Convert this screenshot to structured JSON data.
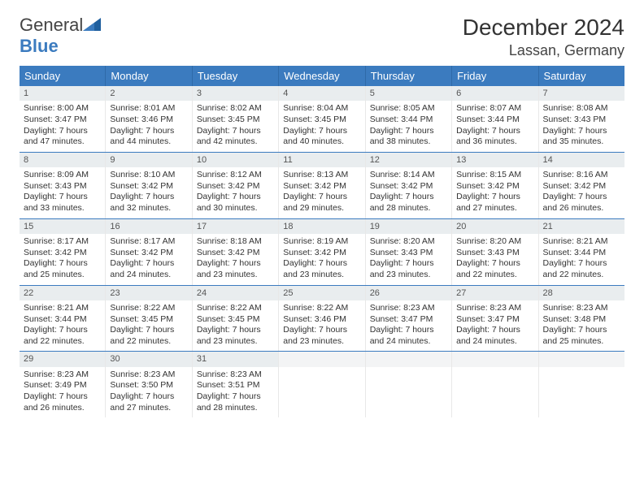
{
  "logo": {
    "word1": "General",
    "word2": "Blue"
  },
  "title": "December 2024",
  "location": "Lassan, Germany",
  "header_color": "#3b7bbf",
  "day_names": [
    "Sunday",
    "Monday",
    "Tuesday",
    "Wednesday",
    "Thursday",
    "Friday",
    "Saturday"
  ],
  "weeks": [
    [
      {
        "num": "1",
        "sunrise": "Sunrise: 8:00 AM",
        "sunset": "Sunset: 3:47 PM",
        "day1": "Daylight: 7 hours",
        "day2": "and 47 minutes."
      },
      {
        "num": "2",
        "sunrise": "Sunrise: 8:01 AM",
        "sunset": "Sunset: 3:46 PM",
        "day1": "Daylight: 7 hours",
        "day2": "and 44 minutes."
      },
      {
        "num": "3",
        "sunrise": "Sunrise: 8:02 AM",
        "sunset": "Sunset: 3:45 PM",
        "day1": "Daylight: 7 hours",
        "day2": "and 42 minutes."
      },
      {
        "num": "4",
        "sunrise": "Sunrise: 8:04 AM",
        "sunset": "Sunset: 3:45 PM",
        "day1": "Daylight: 7 hours",
        "day2": "and 40 minutes."
      },
      {
        "num": "5",
        "sunrise": "Sunrise: 8:05 AM",
        "sunset": "Sunset: 3:44 PM",
        "day1": "Daylight: 7 hours",
        "day2": "and 38 minutes."
      },
      {
        "num": "6",
        "sunrise": "Sunrise: 8:07 AM",
        "sunset": "Sunset: 3:44 PM",
        "day1": "Daylight: 7 hours",
        "day2": "and 36 minutes."
      },
      {
        "num": "7",
        "sunrise": "Sunrise: 8:08 AM",
        "sunset": "Sunset: 3:43 PM",
        "day1": "Daylight: 7 hours",
        "day2": "and 35 minutes."
      }
    ],
    [
      {
        "num": "8",
        "sunrise": "Sunrise: 8:09 AM",
        "sunset": "Sunset: 3:43 PM",
        "day1": "Daylight: 7 hours",
        "day2": "and 33 minutes."
      },
      {
        "num": "9",
        "sunrise": "Sunrise: 8:10 AM",
        "sunset": "Sunset: 3:42 PM",
        "day1": "Daylight: 7 hours",
        "day2": "and 32 minutes."
      },
      {
        "num": "10",
        "sunrise": "Sunrise: 8:12 AM",
        "sunset": "Sunset: 3:42 PM",
        "day1": "Daylight: 7 hours",
        "day2": "and 30 minutes."
      },
      {
        "num": "11",
        "sunrise": "Sunrise: 8:13 AM",
        "sunset": "Sunset: 3:42 PM",
        "day1": "Daylight: 7 hours",
        "day2": "and 29 minutes."
      },
      {
        "num": "12",
        "sunrise": "Sunrise: 8:14 AM",
        "sunset": "Sunset: 3:42 PM",
        "day1": "Daylight: 7 hours",
        "day2": "and 28 minutes."
      },
      {
        "num": "13",
        "sunrise": "Sunrise: 8:15 AM",
        "sunset": "Sunset: 3:42 PM",
        "day1": "Daylight: 7 hours",
        "day2": "and 27 minutes."
      },
      {
        "num": "14",
        "sunrise": "Sunrise: 8:16 AM",
        "sunset": "Sunset: 3:42 PM",
        "day1": "Daylight: 7 hours",
        "day2": "and 26 minutes."
      }
    ],
    [
      {
        "num": "15",
        "sunrise": "Sunrise: 8:17 AM",
        "sunset": "Sunset: 3:42 PM",
        "day1": "Daylight: 7 hours",
        "day2": "and 25 minutes."
      },
      {
        "num": "16",
        "sunrise": "Sunrise: 8:17 AM",
        "sunset": "Sunset: 3:42 PM",
        "day1": "Daylight: 7 hours",
        "day2": "and 24 minutes."
      },
      {
        "num": "17",
        "sunrise": "Sunrise: 8:18 AM",
        "sunset": "Sunset: 3:42 PM",
        "day1": "Daylight: 7 hours",
        "day2": "and 23 minutes."
      },
      {
        "num": "18",
        "sunrise": "Sunrise: 8:19 AM",
        "sunset": "Sunset: 3:42 PM",
        "day1": "Daylight: 7 hours",
        "day2": "and 23 minutes."
      },
      {
        "num": "19",
        "sunrise": "Sunrise: 8:20 AM",
        "sunset": "Sunset: 3:43 PM",
        "day1": "Daylight: 7 hours",
        "day2": "and 23 minutes."
      },
      {
        "num": "20",
        "sunrise": "Sunrise: 8:20 AM",
        "sunset": "Sunset: 3:43 PM",
        "day1": "Daylight: 7 hours",
        "day2": "and 22 minutes."
      },
      {
        "num": "21",
        "sunrise": "Sunrise: 8:21 AM",
        "sunset": "Sunset: 3:44 PM",
        "day1": "Daylight: 7 hours",
        "day2": "and 22 minutes."
      }
    ],
    [
      {
        "num": "22",
        "sunrise": "Sunrise: 8:21 AM",
        "sunset": "Sunset: 3:44 PM",
        "day1": "Daylight: 7 hours",
        "day2": "and 22 minutes."
      },
      {
        "num": "23",
        "sunrise": "Sunrise: 8:22 AM",
        "sunset": "Sunset: 3:45 PM",
        "day1": "Daylight: 7 hours",
        "day2": "and 22 minutes."
      },
      {
        "num": "24",
        "sunrise": "Sunrise: 8:22 AM",
        "sunset": "Sunset: 3:45 PM",
        "day1": "Daylight: 7 hours",
        "day2": "and 23 minutes."
      },
      {
        "num": "25",
        "sunrise": "Sunrise: 8:22 AM",
        "sunset": "Sunset: 3:46 PM",
        "day1": "Daylight: 7 hours",
        "day2": "and 23 minutes."
      },
      {
        "num": "26",
        "sunrise": "Sunrise: 8:23 AM",
        "sunset": "Sunset: 3:47 PM",
        "day1": "Daylight: 7 hours",
        "day2": "and 24 minutes."
      },
      {
        "num": "27",
        "sunrise": "Sunrise: 8:23 AM",
        "sunset": "Sunset: 3:47 PM",
        "day1": "Daylight: 7 hours",
        "day2": "and 24 minutes."
      },
      {
        "num": "28",
        "sunrise": "Sunrise: 8:23 AM",
        "sunset": "Sunset: 3:48 PM",
        "day1": "Daylight: 7 hours",
        "day2": "and 25 minutes."
      }
    ],
    [
      {
        "num": "29",
        "sunrise": "Sunrise: 8:23 AM",
        "sunset": "Sunset: 3:49 PM",
        "day1": "Daylight: 7 hours",
        "day2": "and 26 minutes."
      },
      {
        "num": "30",
        "sunrise": "Sunrise: 8:23 AM",
        "sunset": "Sunset: 3:50 PM",
        "day1": "Daylight: 7 hours",
        "day2": "and 27 minutes."
      },
      {
        "num": "31",
        "sunrise": "Sunrise: 8:23 AM",
        "sunset": "Sunset: 3:51 PM",
        "day1": "Daylight: 7 hours",
        "day2": "and 28 minutes."
      },
      {
        "empty": true
      },
      {
        "empty": true
      },
      {
        "empty": true
      },
      {
        "empty": true
      }
    ]
  ]
}
